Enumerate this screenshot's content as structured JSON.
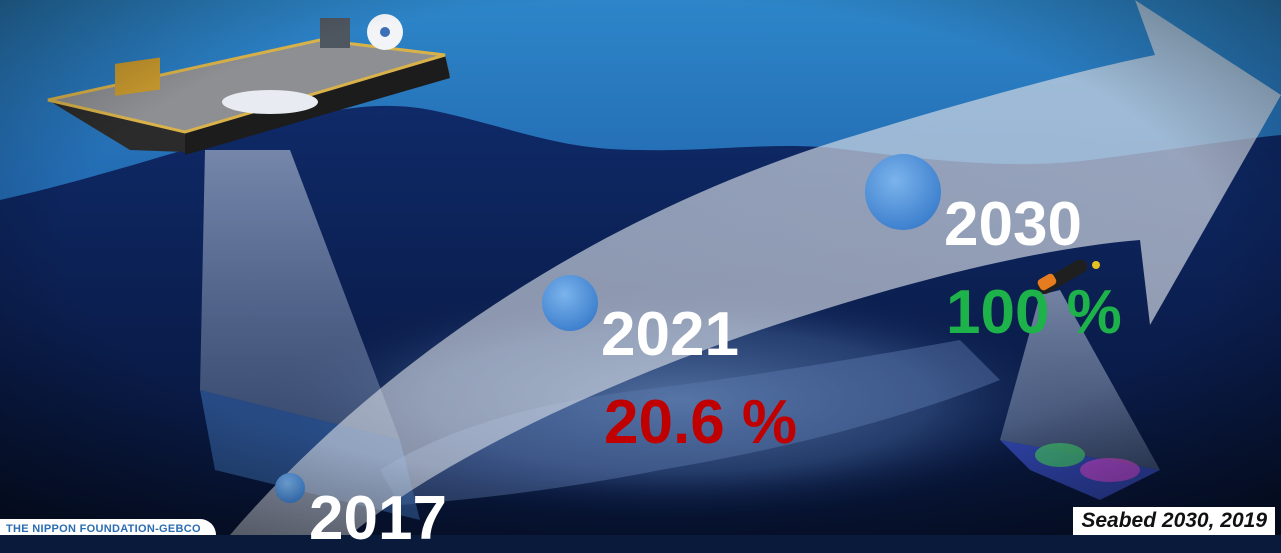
{
  "milestones": [
    {
      "year": "2030",
      "coverage": "100 %",
      "coverage_color": "#1eb24a"
    },
    {
      "year": "2021",
      "coverage": "20.6 %",
      "coverage_color": "#c00000"
    },
    {
      "year": "2017"
    }
  ],
  "credit": "Seabed 2030, 2019",
  "logo_text": "THE NIPPON FOUNDATION-GEBCO",
  "colors": {
    "marker": "#4a8fd8",
    "arrow": "#d8dde6"
  }
}
